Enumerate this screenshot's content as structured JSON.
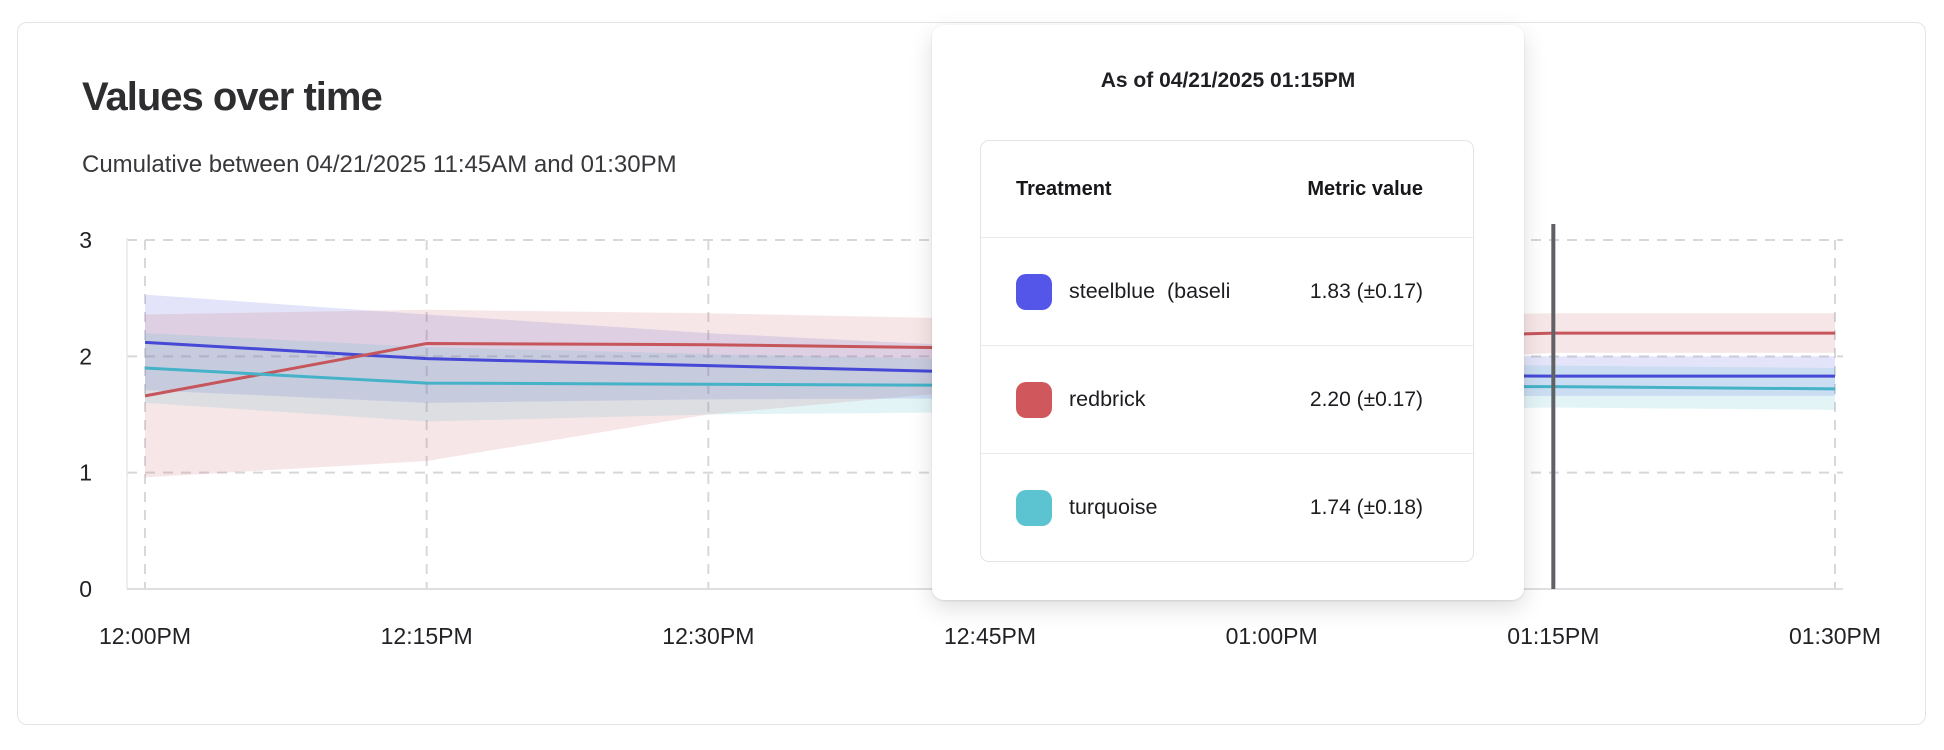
{
  "header": {
    "title": "Values over time",
    "subtitle": "Cumulative between 04/21/2025 11:45AM and 01:30PM"
  },
  "tooltip": {
    "title": "As of 04/21/2025 01:15PM",
    "columns": [
      "Treatment",
      "Metric value"
    ],
    "rows": [
      {
        "swatch_color": "#5356e8",
        "label": "steelblue  (baseli",
        "value": "1.83 (±0.17)"
      },
      {
        "swatch_color": "#d0585c",
        "label": "redbrick",
        "value": "2.20 (±0.17)"
      },
      {
        "swatch_color": "#5cc3d0",
        "label": "turquoise",
        "value": "1.74 (±0.18)"
      }
    ]
  },
  "chart_data": {
    "type": "line",
    "title": "Values over time",
    "subtitle": "Cumulative between 04/21/2025 11:45AM and 01:30PM",
    "x": [
      "12:00PM",
      "12:15PM",
      "12:30PM",
      "12:45PM",
      "01:00PM",
      "01:15PM",
      "01:30PM"
    ],
    "ylim": [
      0,
      3
    ],
    "yticks": [
      0,
      1,
      2,
      3
    ],
    "grid": "dashed",
    "legend_position": "none",
    "cursor": {
      "x": "01:15PM",
      "color": "#5f6165"
    },
    "series": [
      {
        "name": "steelblue (baseline)",
        "color": "#4549d6",
        "values": [
          2.12,
          1.98,
          1.92,
          1.86,
          1.84,
          1.83,
          1.83
        ],
        "band_lo": [
          1.71,
          1.6,
          1.63,
          1.64,
          1.65,
          1.66,
          1.66
        ],
        "band_hi": [
          2.53,
          2.36,
          2.2,
          2.08,
          2.02,
          2.0,
          2.0
        ]
      },
      {
        "name": "redbrick",
        "color": "#c6565b",
        "values": [
          1.66,
          2.11,
          2.1,
          2.07,
          2.13,
          2.2,
          2.2
        ],
        "band_lo": [
          0.96,
          1.1,
          1.5,
          1.72,
          1.9,
          2.03,
          2.03
        ],
        "band_hi": [
          2.36,
          2.4,
          2.37,
          2.32,
          2.34,
          2.37,
          2.37
        ]
      },
      {
        "name": "turquoise",
        "color": "#45b2c8",
        "values": [
          1.9,
          1.77,
          1.76,
          1.75,
          1.74,
          1.74,
          1.72
        ],
        "band_lo": [
          1.6,
          1.44,
          1.5,
          1.52,
          1.53,
          1.56,
          1.54
        ],
        "band_hi": [
          2.2,
          2.08,
          2.02,
          1.97,
          1.95,
          1.92,
          1.9
        ]
      }
    ]
  }
}
